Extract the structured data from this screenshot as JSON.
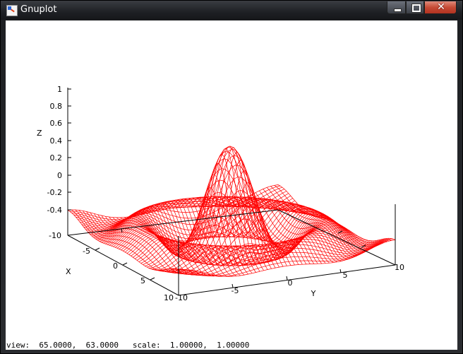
{
  "window": {
    "title": "Gnuplot",
    "close_glyph": "✕"
  },
  "plot": {
    "type": "wireframe-3d",
    "function": "sin(r)/r",
    "color": "#ff0000",
    "z_axis": {
      "label": "Z",
      "ticks": [
        "1",
        "0.8",
        "0.6",
        "0.4",
        "0.2",
        "0",
        "-0.2",
        "-0.4"
      ]
    },
    "x_axis": {
      "label": "X",
      "ticks": [
        "-10",
        "-5",
        "0",
        "5",
        "10"
      ]
    },
    "y_axis": {
      "label": "Y",
      "ticks": [
        "-10",
        "-5",
        "0",
        "5",
        "10"
      ]
    }
  },
  "status": {
    "view_label": "view:",
    "view_values": "65.0000,  63.0000",
    "scale_label": "scale:",
    "scale_values": "1.00000,  1.00000"
  }
}
